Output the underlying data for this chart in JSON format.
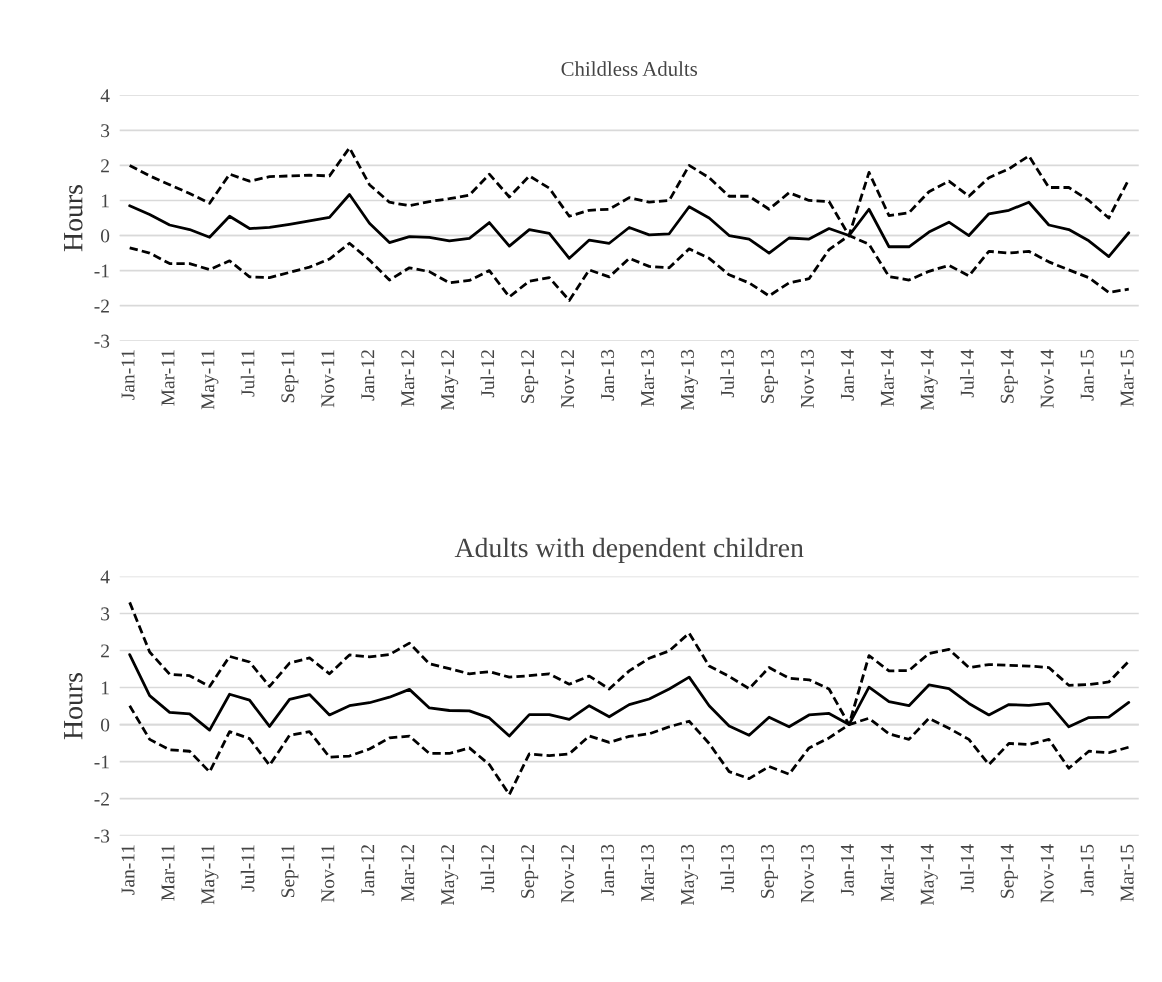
{
  "chart_data": [
    {
      "type": "line",
      "title": "Childless Adults",
      "ylabel": "Hours",
      "categories": [
        "Jan-11",
        null,
        "Mar-11",
        null,
        "May-11",
        null,
        "Jul-11",
        null,
        "Sep-11",
        null,
        "Nov-11",
        null,
        "Jan-12",
        null,
        "Mar-12",
        null,
        "May-12",
        null,
        "Jul-12",
        null,
        "Sep-12",
        null,
        "Nov-12",
        null,
        "Jan-13",
        null,
        "Mar-13",
        null,
        "May-13",
        null,
        "Jul-13",
        null,
        "Sep-13",
        null,
        "Nov-13",
        null,
        "Jan-14",
        null,
        "Mar-14",
        null,
        "May-14",
        null,
        "Jul-14",
        null,
        "Sep-14",
        null,
        "Nov-14",
        null,
        "Jan-15",
        null,
        "Mar-15"
      ],
      "ylim": [
        -3,
        4
      ],
      "yticks": [
        -3,
        -2,
        -1,
        0,
        1,
        2,
        3,
        4
      ],
      "grid": "y",
      "series": [
        {
          "color": "#000000",
          "line_style": "dashed",
          "values": [
            2.0,
            1.7,
            1.45,
            1.2,
            0.92,
            1.75,
            1.55,
            1.68,
            1.7,
            1.72,
            1.7,
            2.5,
            1.45,
            0.95,
            0.85,
            0.97,
            1.05,
            1.15,
            1.75,
            1.1,
            1.7,
            1.35,
            0.55,
            0.72,
            0.75,
            1.08,
            0.95,
            1.0,
            2.0,
            1.65,
            1.12,
            1.12,
            0.75,
            1.22,
            1.0,
            0.97,
            0.0,
            1.8,
            0.57,
            0.65,
            1.25,
            1.55,
            1.12,
            1.65,
            1.9,
            2.27,
            1.37,
            1.37,
            1.0,
            0.5,
            1.6
          ]
        },
        {
          "color": "#000000",
          "line_style": "solid",
          "values": [
            0.85,
            0.6,
            0.3,
            0.17,
            -0.05,
            0.55,
            0.2,
            0.23,
            0.32,
            0.42,
            0.52,
            1.17,
            0.35,
            -0.2,
            -0.03,
            -0.05,
            -0.15,
            -0.08,
            0.37,
            -0.3,
            0.17,
            0.06,
            -0.65,
            -0.13,
            -0.22,
            0.23,
            0.02,
            0.05,
            0.82,
            0.5,
            0.0,
            -0.1,
            -0.5,
            -0.07,
            -0.1,
            0.2,
            0.0,
            0.75,
            -0.32,
            -0.32,
            0.1,
            0.38,
            0.0,
            0.62,
            0.72,
            0.95,
            0.3,
            0.17,
            -0.15,
            -0.6,
            0.08
          ]
        },
        {
          "color": "#000000",
          "line_style": "dashed",
          "values": [
            -0.35,
            -0.5,
            -0.8,
            -0.8,
            -0.97,
            -0.72,
            -1.18,
            -1.2,
            -1.05,
            -0.9,
            -0.67,
            -0.22,
            -0.7,
            -1.27,
            -0.92,
            -1.03,
            -1.35,
            -1.28,
            -1.0,
            -1.75,
            -1.3,
            -1.2,
            -1.85,
            -0.98,
            -1.18,
            -0.65,
            -0.88,
            -0.92,
            -0.38,
            -0.65,
            -1.12,
            -1.35,
            -1.72,
            -1.35,
            -1.23,
            -0.4,
            0.0,
            -0.25,
            -1.17,
            -1.27,
            -1.02,
            -0.85,
            -1.15,
            -0.45,
            -0.5,
            -0.45,
            -0.75,
            -0.98,
            -1.2,
            -1.62,
            -1.53
          ]
        }
      ]
    },
    {
      "type": "line",
      "title": "Adults with dependent children",
      "ylabel": "Hours",
      "categories": [
        "Jan-11",
        null,
        "Mar-11",
        null,
        "May-11",
        null,
        "Jul-11",
        null,
        "Sep-11",
        null,
        "Nov-11",
        null,
        "Jan-12",
        null,
        "Mar-12",
        null,
        "May-12",
        null,
        "Jul-12",
        null,
        "Sep-12",
        null,
        "Nov-12",
        null,
        "Jan-13",
        null,
        "Mar-13",
        null,
        "May-13",
        null,
        "Jul-13",
        null,
        "Sep-13",
        null,
        "Nov-13",
        null,
        "Jan-14",
        null,
        "Mar-14",
        null,
        "May-14",
        null,
        "Jul-14",
        null,
        "Sep-14",
        null,
        "Nov-14",
        null,
        "Jan-15",
        null,
        "Mar-15"
      ],
      "ylim": [
        -3,
        4
      ],
      "yticks": [
        -3,
        -2,
        -1,
        0,
        1,
        2,
        3,
        4
      ],
      "grid": "y",
      "series": [
        {
          "color": "#000000",
          "line_style": "dashed",
          "values": [
            3.3,
            1.96,
            1.36,
            1.32,
            1.03,
            1.84,
            1.69,
            1.03,
            1.66,
            1.8,
            1.37,
            1.88,
            1.83,
            1.89,
            2.2,
            1.64,
            1.51,
            1.37,
            1.43,
            1.28,
            1.32,
            1.37,
            1.09,
            1.31,
            0.96,
            1.45,
            1.79,
            1.99,
            2.47,
            1.58,
            1.3,
            0.97,
            1.54,
            1.25,
            1.21,
            0.96,
            0.0,
            1.86,
            1.45,
            1.46,
            1.92,
            2.03,
            1.54,
            1.62,
            1.6,
            1.58,
            1.54,
            1.06,
            1.08,
            1.15,
            1.71
          ]
        },
        {
          "color": "#000000",
          "line_style": "solid",
          "values": [
            1.89,
            0.78,
            0.33,
            0.29,
            -0.15,
            0.82,
            0.66,
            -0.05,
            0.68,
            0.81,
            0.26,
            0.51,
            0.59,
            0.74,
            0.95,
            0.45,
            0.38,
            0.37,
            0.18,
            -0.31,
            0.27,
            0.27,
            0.14,
            0.51,
            0.21,
            0.54,
            0.69,
            0.96,
            1.28,
            0.51,
            -0.04,
            -0.29,
            0.2,
            -0.06,
            0.26,
            0.3,
            0.0,
            1.01,
            0.62,
            0.51,
            1.07,
            0.97,
            0.57,
            0.26,
            0.54,
            0.52,
            0.57,
            -0.06,
            0.19,
            0.2,
            0.6
          ]
        },
        {
          "color": "#000000",
          "line_style": "dashed",
          "values": [
            0.51,
            -0.4,
            -0.68,
            -0.72,
            -1.28,
            -0.19,
            -0.38,
            -1.1,
            -0.29,
            -0.19,
            -0.88,
            -0.85,
            -0.66,
            -0.36,
            -0.31,
            -0.78,
            -0.78,
            -0.63,
            -1.08,
            -1.89,
            -0.79,
            -0.84,
            -0.79,
            -0.31,
            -0.48,
            -0.32,
            -0.25,
            -0.06,
            0.09,
            -0.51,
            -1.27,
            -1.46,
            -1.13,
            -1.34,
            -0.63,
            -0.36,
            0.0,
            0.17,
            -0.25,
            -0.4,
            0.17,
            -0.1,
            -0.4,
            -1.08,
            -0.51,
            -0.54,
            -0.4,
            -1.18,
            -0.72,
            -0.76,
            -0.61
          ]
        }
      ]
    }
  ]
}
